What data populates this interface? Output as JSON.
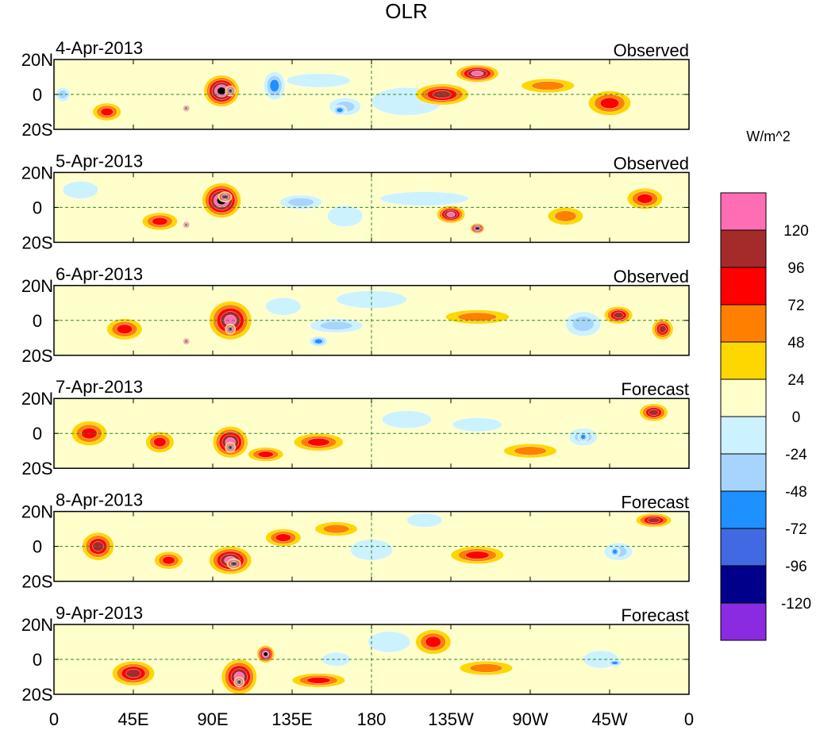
{
  "chart_data": {
    "type": "heatmap",
    "title": "OLR",
    "units_label": "W/m^2",
    "lat_ticks": [
      "20N",
      "0",
      "20S"
    ],
    "lon_ticks": [
      "0",
      "45E",
      "90E",
      "135E",
      "180",
      "135W",
      "90W",
      "45W",
      "0"
    ],
    "lat_range": [
      -20,
      20
    ],
    "lon_range": [
      0,
      360
    ],
    "panels": [
      {
        "date": "4-Apr-2013",
        "status": "Observed"
      },
      {
        "date": "5-Apr-2013",
        "status": "Observed"
      },
      {
        "date": "6-Apr-2013",
        "status": "Observed"
      },
      {
        "date": "7-Apr-2013",
        "status": "Forecast"
      },
      {
        "date": "8-Apr-2013",
        "status": "Forecast"
      },
      {
        "date": "9-Apr-2013",
        "status": "Forecast"
      }
    ],
    "colorbar": {
      "labels": [
        "120",
        "96",
        "72",
        "48",
        "24",
        "0",
        "-24",
        "-48",
        "-72",
        "-96",
        "-120"
      ],
      "colors": [
        "#ff6eb4",
        "#a52a2a",
        "#ff0000",
        "#ff7f00",
        "#ffd700",
        "#ffffcc",
        "#ccf2ff",
        "#a6d4ff",
        "#1e90ff",
        "#4169e1",
        "#00008b",
        "#8a2be2"
      ]
    },
    "anomalies": [
      [
        {
          "lon": 95,
          "lat": 2,
          "rx": 10,
          "ry": 9,
          "c": 6
        },
        {
          "lon": 100,
          "lat": 2,
          "rx": 3,
          "ry": 3,
          "c": 8
        },
        {
          "lon": 75,
          "lat": -8,
          "rx": 2,
          "ry": 2,
          "c": 8
        },
        {
          "lon": 125,
          "lat": 5,
          "rx": 6,
          "ry": 8,
          "c": -3
        },
        {
          "lon": 165,
          "lat": -7,
          "rx": 9,
          "ry": 5,
          "c": -2
        },
        {
          "lon": 162,
          "lat": -9,
          "rx": 4,
          "ry": 3,
          "c": -3
        },
        {
          "lon": 200,
          "lat": -4,
          "rx": 20,
          "ry": 8,
          "c": -1
        },
        {
          "lon": 150,
          "lat": 8,
          "rx": 18,
          "ry": 4,
          "c": -1
        },
        {
          "lon": 220,
          "lat": 0,
          "rx": 15,
          "ry": 6,
          "c": 4
        },
        {
          "lon": 240,
          "lat": 12,
          "rx": 12,
          "ry": 5,
          "c": 5
        },
        {
          "lon": 5,
          "lat": 0,
          "rx": 4,
          "ry": 4,
          "c": -2
        },
        {
          "lon": 30,
          "lat": -10,
          "rx": 8,
          "ry": 5,
          "c": 3
        },
        {
          "lon": 315,
          "lat": -5,
          "rx": 12,
          "ry": 7,
          "c": 3
        },
        {
          "lon": 280,
          "lat": 5,
          "rx": 15,
          "ry": 4,
          "c": 2
        }
      ],
      [
        {
          "lon": 95,
          "lat": 4,
          "rx": 11,
          "ry": 10,
          "c": 6
        },
        {
          "lon": 97,
          "lat": 6,
          "rx": 4,
          "ry": 3,
          "c": 8
        },
        {
          "lon": 75,
          "lat": -10,
          "rx": 2,
          "ry": 2,
          "c": 8
        },
        {
          "lon": 140,
          "lat": 3,
          "rx": 12,
          "ry": 4,
          "c": -2
        },
        {
          "lon": 165,
          "lat": -5,
          "rx": 10,
          "ry": 6,
          "c": -1
        },
        {
          "lon": 210,
          "lat": 5,
          "rx": 25,
          "ry": 4,
          "c": -1
        },
        {
          "lon": 225,
          "lat": -4,
          "rx": 8,
          "ry": 5,
          "c": 5
        },
        {
          "lon": 240,
          "lat": -12,
          "rx": 4,
          "ry": 3,
          "c": 7
        },
        {
          "lon": 15,
          "lat": 10,
          "rx": 10,
          "ry": 5,
          "c": -1
        },
        {
          "lon": 60,
          "lat": -8,
          "rx": 10,
          "ry": 5,
          "c": 3
        },
        {
          "lon": 335,
          "lat": 5,
          "rx": 10,
          "ry": 6,
          "c": 3
        },
        {
          "lon": 290,
          "lat": -5,
          "rx": 10,
          "ry": 5,
          "c": 2
        }
      ],
      [
        {
          "lon": 100,
          "lat": 0,
          "rx": 12,
          "ry": 11,
          "c": 5
        },
        {
          "lon": 100,
          "lat": -5,
          "rx": 3,
          "ry": 3,
          "c": 8
        },
        {
          "lon": 75,
          "lat": -12,
          "rx": 2,
          "ry": 2,
          "c": 8
        },
        {
          "lon": 130,
          "lat": 8,
          "rx": 10,
          "ry": 5,
          "c": -1
        },
        {
          "lon": 160,
          "lat": -3,
          "rx": 15,
          "ry": 4,
          "c": -2
        },
        {
          "lon": 150,
          "lat": -12,
          "rx": 5,
          "ry": 3,
          "c": -3
        },
        {
          "lon": 180,
          "lat": 12,
          "rx": 20,
          "ry": 5,
          "c": -1
        },
        {
          "lon": 300,
          "lat": -2,
          "rx": 10,
          "ry": 7,
          "c": -2
        },
        {
          "lon": 320,
          "lat": 3,
          "rx": 8,
          "ry": 5,
          "c": 4
        },
        {
          "lon": 345,
          "lat": -5,
          "rx": 6,
          "ry": 6,
          "c": 4
        },
        {
          "lon": 40,
          "lat": -5,
          "rx": 10,
          "ry": 6,
          "c": 3
        },
        {
          "lon": 240,
          "lat": 2,
          "rx": 18,
          "ry": 4,
          "c": 2
        }
      ],
      [
        {
          "lon": 100,
          "lat": -5,
          "rx": 10,
          "ry": 9,
          "c": 5
        },
        {
          "lon": 100,
          "lat": -8,
          "rx": 3,
          "ry": 3,
          "c": 8
        },
        {
          "lon": 60,
          "lat": -5,
          "rx": 8,
          "ry": 6,
          "c": 3
        },
        {
          "lon": 150,
          "lat": -5,
          "rx": 14,
          "ry": 5,
          "c": 3
        },
        {
          "lon": 200,
          "lat": 8,
          "rx": 14,
          "ry": 5,
          "c": -1
        },
        {
          "lon": 240,
          "lat": 5,
          "rx": 14,
          "ry": 4,
          "c": -1
        },
        {
          "lon": 300,
          "lat": -2,
          "rx": 8,
          "ry": 5,
          "c": -2
        },
        {
          "lon": 300,
          "lat": -2,
          "rx": 3,
          "ry": 3,
          "c": -3
        },
        {
          "lon": 340,
          "lat": 12,
          "rx": 8,
          "ry": 5,
          "c": 4
        },
        {
          "lon": 20,
          "lat": 0,
          "rx": 10,
          "ry": 7,
          "c": 3
        },
        {
          "lon": 120,
          "lat": -12,
          "rx": 10,
          "ry": 4,
          "c": 3
        },
        {
          "lon": 270,
          "lat": -10,
          "rx": 15,
          "ry": 4,
          "c": 2
        }
      ],
      [
        {
          "lon": 100,
          "lat": -8,
          "rx": 12,
          "ry": 8,
          "c": 5
        },
        {
          "lon": 102,
          "lat": -10,
          "rx": 4,
          "ry": 3,
          "c": 8
        },
        {
          "lon": 25,
          "lat": 0,
          "rx": 9,
          "ry": 8,
          "c": 4
        },
        {
          "lon": 65,
          "lat": -8,
          "rx": 8,
          "ry": 5,
          "c": 3
        },
        {
          "lon": 130,
          "lat": 5,
          "rx": 10,
          "ry": 5,
          "c": 3
        },
        {
          "lon": 180,
          "lat": -2,
          "rx": 12,
          "ry": 6,
          "c": -1
        },
        {
          "lon": 210,
          "lat": 15,
          "rx": 10,
          "ry": 4,
          "c": -1
        },
        {
          "lon": 320,
          "lat": -3,
          "rx": 8,
          "ry": 5,
          "c": -2
        },
        {
          "lon": 318,
          "lat": -3,
          "rx": 3,
          "ry": 3,
          "c": -3
        },
        {
          "lon": 340,
          "lat": 15,
          "rx": 10,
          "ry": 4,
          "c": 4
        },
        {
          "lon": 240,
          "lat": -5,
          "rx": 15,
          "ry": 5,
          "c": 3
        },
        {
          "lon": 160,
          "lat": 10,
          "rx": 12,
          "ry": 4,
          "c": 2
        }
      ],
      [
        {
          "lon": 105,
          "lat": -10,
          "rx": 10,
          "ry": 10,
          "c": 5
        },
        {
          "lon": 105,
          "lat": -13,
          "rx": 3,
          "ry": 3,
          "c": 8
        },
        {
          "lon": 120,
          "lat": 3,
          "rx": 5,
          "ry": 5,
          "c": 6
        },
        {
          "lon": 45,
          "lat": -8,
          "rx": 12,
          "ry": 7,
          "c": 4
        },
        {
          "lon": 215,
          "lat": 10,
          "rx": 10,
          "ry": 7,
          "c": 3
        },
        {
          "lon": 190,
          "lat": 10,
          "rx": 12,
          "ry": 6,
          "c": -1
        },
        {
          "lon": 160,
          "lat": 0,
          "rx": 8,
          "ry": 4,
          "c": -1
        },
        {
          "lon": 310,
          "lat": 0,
          "rx": 10,
          "ry": 5,
          "c": -1
        },
        {
          "lon": 318,
          "lat": -2,
          "rx": 4,
          "ry": 2,
          "c": -3
        },
        {
          "lon": 245,
          "lat": -5,
          "rx": 15,
          "ry": 4,
          "c": 2
        },
        {
          "lon": 150,
          "lat": -12,
          "rx": 15,
          "ry": 4,
          "c": 3
        }
      ]
    ]
  }
}
